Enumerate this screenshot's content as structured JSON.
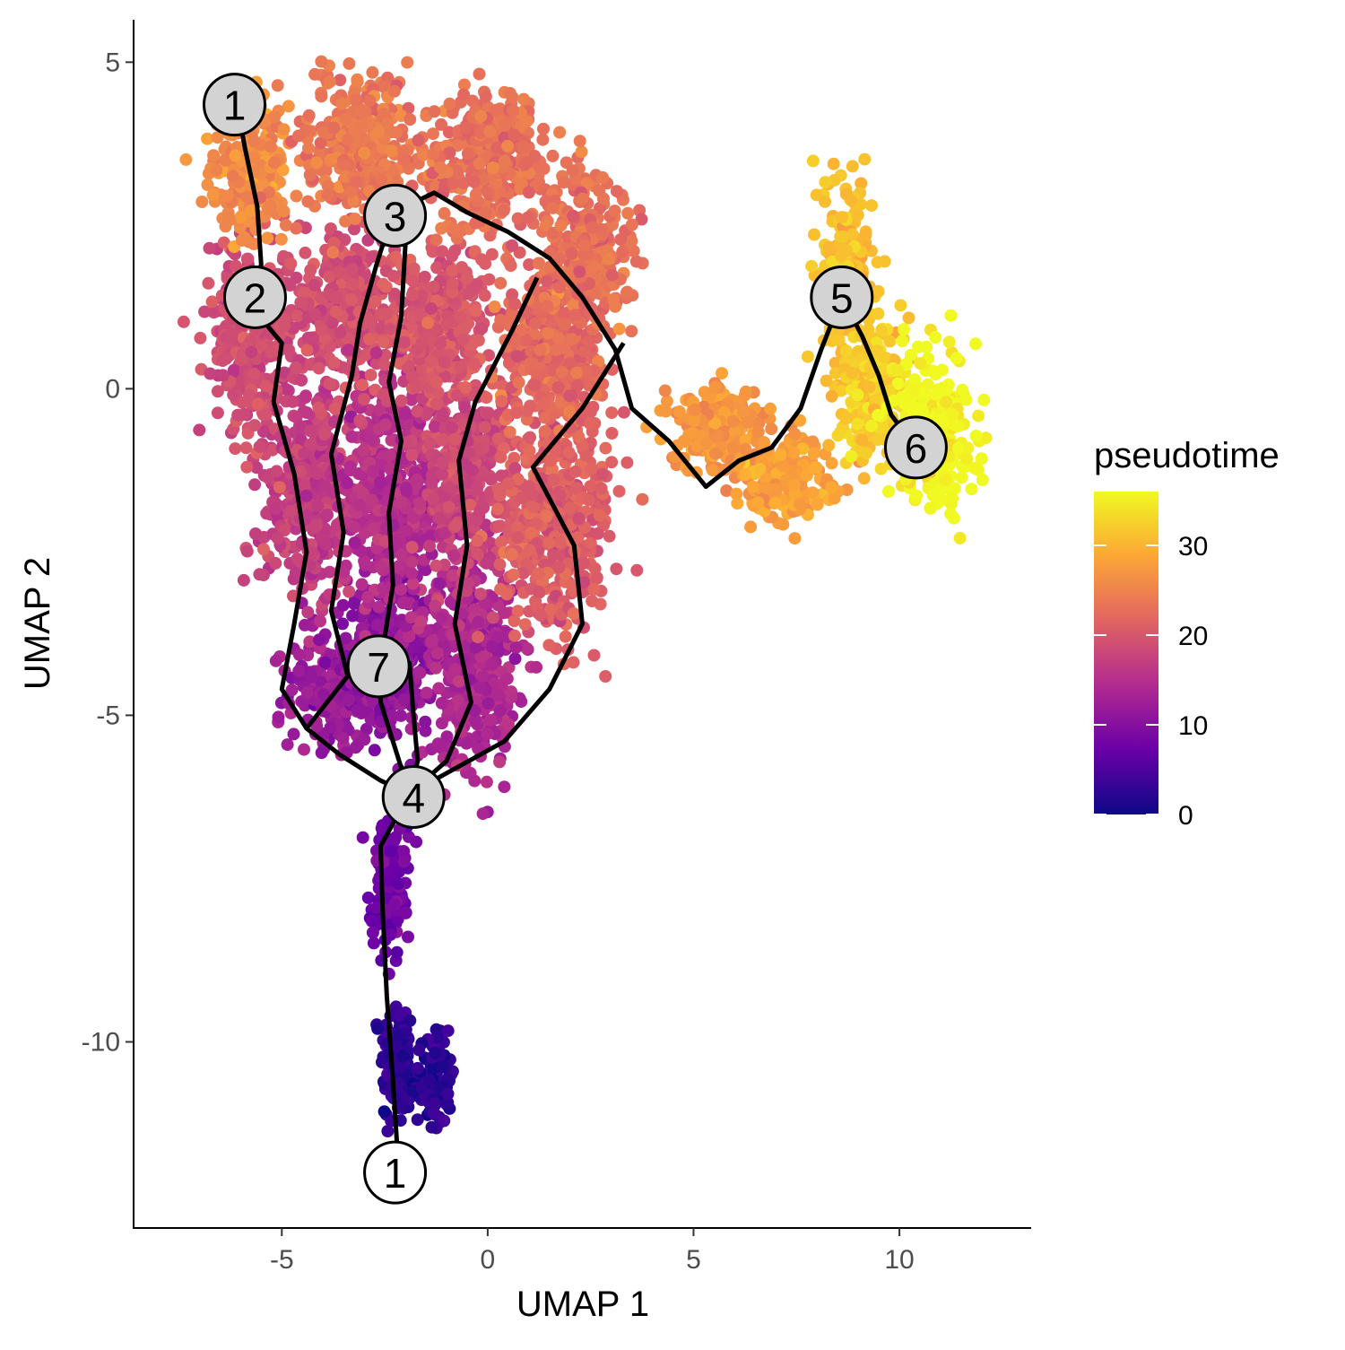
{
  "chart_data": {
    "type": "scatter",
    "title": "",
    "xlabel": "UMAP 1",
    "ylabel": "UMAP 2",
    "xlim": [
      -8.6,
      13.2
    ],
    "ylim": [
      -12.85,
      5.65
    ],
    "x_ticks": [
      -5,
      0,
      5,
      10
    ],
    "x_tick_labels": [
      "-5",
      "0",
      "5",
      "10"
    ],
    "y_ticks": [
      5,
      0,
      -5,
      -10
    ],
    "y_tick_labels": [
      "5",
      "0",
      "-5",
      "-10"
    ],
    "grid": false,
    "color_variable": "pseudotime",
    "colorscale": {
      "name": "plasma",
      "range": [
        0,
        36
      ],
      "ticks": [
        0,
        10,
        20,
        30
      ],
      "tick_labels": [
        "0",
        "10",
        "20",
        "30"
      ],
      "stops": [
        "#0d0887",
        "#6a00a8",
        "#b12a90",
        "#e16462",
        "#fca636",
        "#f0f921"
      ],
      "legend_position": "right"
    },
    "clusters": [
      {
        "x": -2.2,
        "y": -10.3,
        "sx": 0.35,
        "sy": 0.9,
        "pt": 3
      },
      {
        "x": -1.3,
        "y": -10.6,
        "sx": 0.45,
        "sy": 0.6,
        "pt": 2
      },
      {
        "x": -2.4,
        "y": -7.6,
        "sx": 0.4,
        "sy": 0.9,
        "pt": 8
      },
      {
        "x": -3.6,
        "y": -4.6,
        "sx": 1.1,
        "sy": 0.8,
        "pt": 12
      },
      {
        "x": -2.3,
        "y": -4.0,
        "sx": 1.0,
        "sy": 1.2,
        "pt": 11
      },
      {
        "x": -0.4,
        "y": -4.2,
        "sx": 1.0,
        "sy": 1.4,
        "pt": 14
      },
      {
        "x": -4.3,
        "y": -1.5,
        "sx": 1.1,
        "sy": 1.5,
        "pt": 17
      },
      {
        "x": -2.3,
        "y": -1.6,
        "sx": 1.2,
        "sy": 1.5,
        "pt": 15
      },
      {
        "x": -0.5,
        "y": -1.2,
        "sx": 1.0,
        "sy": 1.4,
        "pt": 18
      },
      {
        "x": 1.6,
        "y": -2.0,
        "sx": 1.2,
        "sy": 1.6,
        "pt": 21
      },
      {
        "x": -5.8,
        "y": 0.8,
        "sx": 0.9,
        "sy": 1.3,
        "pt": 19
      },
      {
        "x": -3.5,
        "y": 1.2,
        "sx": 1.2,
        "sy": 1.1,
        "pt": 19
      },
      {
        "x": -1.2,
        "y": 1.0,
        "sx": 1.1,
        "sy": 1.1,
        "pt": 20
      },
      {
        "x": 1.6,
        "y": 0.6,
        "sx": 1.2,
        "sy": 1.1,
        "pt": 22
      },
      {
        "x": -5.8,
        "y": 3.4,
        "sx": 0.9,
        "sy": 0.9,
        "pt": 26
      },
      {
        "x": -3.0,
        "y": 3.7,
        "sx": 1.4,
        "sy": 0.9,
        "pt": 24
      },
      {
        "x": 0.0,
        "y": 3.5,
        "sx": 1.3,
        "sy": 1.0,
        "pt": 23
      },
      {
        "x": 2.4,
        "y": 2.1,
        "sx": 1.0,
        "sy": 1.0,
        "pt": 23
      },
      {
        "x": 5.7,
        "y": -0.6,
        "sx": 1.1,
        "sy": 0.6,
        "pt": 27
      },
      {
        "x": 7.3,
        "y": -1.4,
        "sx": 1.0,
        "sy": 0.6,
        "pt": 28
      },
      {
        "x": 8.7,
        "y": 1.8,
        "sx": 0.6,
        "sy": 1.3,
        "pt": 31
      },
      {
        "x": 9.4,
        "y": 0.0,
        "sx": 0.8,
        "sy": 0.9,
        "pt": 32
      },
      {
        "x": 10.8,
        "y": -0.6,
        "sx": 0.9,
        "sy": 1.1,
        "pt": 36
      }
    ],
    "trajectory_paths": [
      [
        [
          -2.2,
          -11.6
        ],
        [
          -2.3,
          -10.6
        ],
        [
          -2.45,
          -9.3
        ],
        [
          -2.55,
          -8.0
        ],
        [
          -2.6,
          -7.0
        ],
        [
          -1.9,
          -6.2
        ]
      ],
      [
        [
          -1.9,
          -6.2
        ],
        [
          -2.6,
          -6.0
        ],
        [
          -3.6,
          -5.6
        ],
        [
          -4.4,
          -5.2
        ],
        [
          -5.0,
          -4.6
        ],
        [
          -4.7,
          -3.6
        ],
        [
          -4.4,
          -2.5
        ],
        [
          -4.7,
          -1.3
        ],
        [
          -5.2,
          -0.2
        ],
        [
          -5.0,
          0.7
        ],
        [
          -5.8,
          1.3
        ]
      ],
      [
        [
          -5.8,
          1.3
        ],
        [
          -5.5,
          1.9
        ],
        [
          -5.6,
          2.8
        ],
        [
          -5.9,
          3.7
        ],
        [
          -6.1,
          4.4
        ]
      ],
      [
        [
          -1.9,
          -6.2
        ],
        [
          -2.3,
          -5.4
        ],
        [
          -2.6,
          -4.8
        ],
        [
          -2.6,
          -4.2
        ],
        [
          -2.3,
          -3.0
        ],
        [
          -2.4,
          -1.9
        ],
        [
          -2.1,
          -0.8
        ],
        [
          -2.4,
          0.1
        ],
        [
          -2.1,
          1.1
        ],
        [
          -2.0,
          2.2
        ],
        [
          -2.3,
          2.7
        ]
      ],
      [
        [
          -2.3,
          2.7
        ],
        [
          -1.3,
          3.0
        ],
        [
          -0.5,
          2.7
        ],
        [
          0.5,
          2.4
        ],
        [
          1.5,
          2.0
        ],
        [
          2.3,
          1.4
        ],
        [
          3.1,
          0.6
        ],
        [
          3.5,
          -0.3
        ],
        [
          4.4,
          -0.8
        ],
        [
          5.3,
          -1.5
        ],
        [
          6.1,
          -1.1
        ],
        [
          6.9,
          -0.9
        ],
        [
          7.6,
          -0.3
        ],
        [
          8.1,
          0.6
        ],
        [
          8.6,
          1.4
        ]
      ],
      [
        [
          8.6,
          1.4
        ],
        [
          9.1,
          0.8
        ],
        [
          9.5,
          0.2
        ],
        [
          9.8,
          -0.4
        ],
        [
          10.4,
          -0.9
        ]
      ],
      [
        [
          -1.9,
          -6.2
        ],
        [
          -1.7,
          -5.7
        ],
        [
          -1.8,
          -5.0
        ],
        [
          -1.9,
          -4.2
        ],
        [
          -2.4,
          -4.2
        ]
      ],
      [
        [
          -1.9,
          -6.2
        ],
        [
          -1.0,
          -5.7
        ],
        [
          -0.4,
          -4.8
        ],
        [
          -0.8,
          -3.6
        ],
        [
          -0.5,
          -2.4
        ],
        [
          -0.7,
          -1.1
        ],
        [
          -0.3,
          -0.2
        ],
        [
          0.6,
          0.9
        ],
        [
          1.2,
          1.7
        ]
      ],
      [
        [
          -1.9,
          -6.2
        ],
        [
          0.4,
          -5.4
        ],
        [
          1.5,
          -4.6
        ],
        [
          2.3,
          -3.6
        ],
        [
          2.1,
          -2.4
        ],
        [
          1.1,
          -1.2
        ],
        [
          2.3,
          -0.3
        ],
        [
          3.3,
          0.7
        ]
      ],
      [
        [
          -4.4,
          -5.2
        ],
        [
          -3.4,
          -4.4
        ],
        [
          -3.8,
          -3.4
        ],
        [
          -3.5,
          -2.2
        ],
        [
          -3.8,
          -1.0
        ],
        [
          -3.3,
          0.2
        ],
        [
          -3.1,
          1.0
        ],
        [
          -2.7,
          1.9
        ],
        [
          -2.3,
          2.7
        ]
      ]
    ],
    "nodes": [
      {
        "id": "1",
        "x": -6.15,
        "y": 4.35,
        "fill": "#d3d3d3"
      },
      {
        "id": "2",
        "x": -5.65,
        "y": 1.4,
        "fill": "#d3d3d3"
      },
      {
        "id": "3",
        "x": -2.25,
        "y": 2.65,
        "fill": "#d3d3d3"
      },
      {
        "id": "5",
        "x": 8.6,
        "y": 1.4,
        "fill": "#d3d3d3"
      },
      {
        "id": "6",
        "x": 10.4,
        "y": -0.9,
        "fill": "#d3d3d3"
      },
      {
        "id": "7",
        "x": -2.65,
        "y": -4.25,
        "fill": "#d3d3d3"
      },
      {
        "id": "4",
        "x": -1.8,
        "y": -6.25,
        "fill": "#d3d3d3"
      },
      {
        "id": "1",
        "x": -2.25,
        "y": -12.0,
        "fill": "#ffffff"
      }
    ]
  }
}
